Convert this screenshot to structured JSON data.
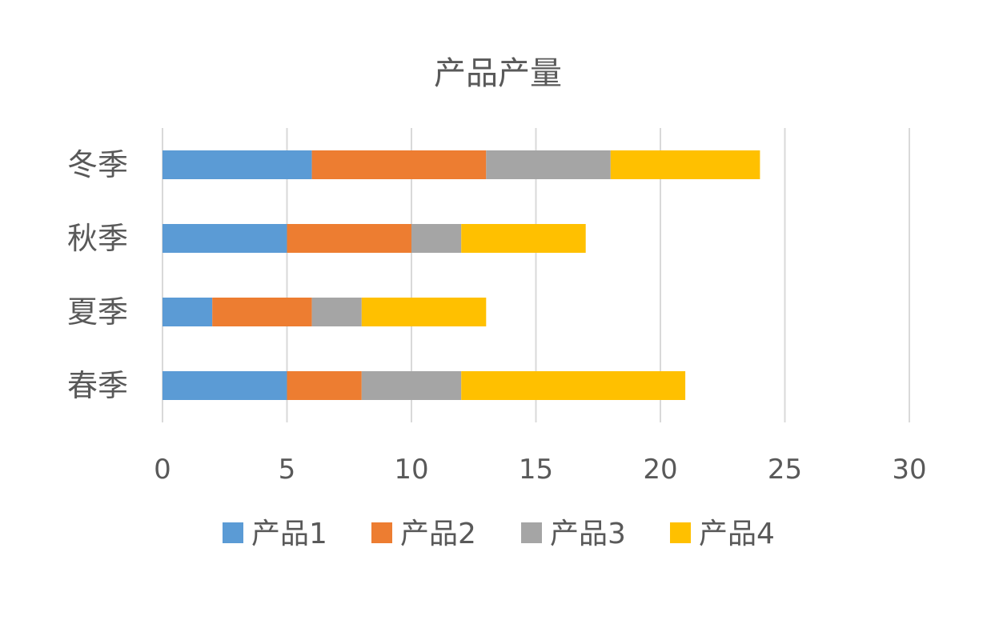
{
  "chart_data": {
    "type": "bar",
    "orientation": "horizontal",
    "stacked": true,
    "title": "产品产量",
    "categories": [
      "冬季",
      "秋季",
      "夏季",
      "春季"
    ],
    "series": [
      {
        "name": "产品1",
        "color": "#5b9bd5",
        "values": [
          6,
          5,
          2,
          5
        ]
      },
      {
        "name": "产品2",
        "color": "#ed7d31",
        "values": [
          7,
          5,
          4,
          3
        ]
      },
      {
        "name": "产品3",
        "color": "#a5a5a5",
        "values": [
          5,
          2,
          2,
          4
        ]
      },
      {
        "name": "产品4",
        "color": "#ffc000",
        "values": [
          6,
          5,
          5,
          9
        ]
      }
    ],
    "xlim": [
      0,
      30
    ],
    "xticks": [
      0,
      5,
      10,
      15,
      20,
      25,
      30
    ],
    "grid": true,
    "legend_position": "bottom"
  }
}
